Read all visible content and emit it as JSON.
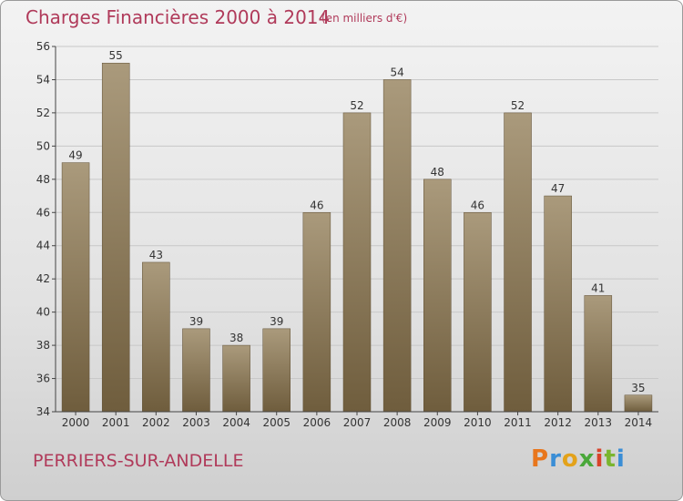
{
  "header": {
    "title": "Charges Financières 2000 à 2014",
    "subtitle": "(en milliers d'€)"
  },
  "footer": {
    "commune": "PERRIERS-SUR-ANDELLE",
    "logo_text": "Proxiti",
    "logo_colors": [
      "#e8761c",
      "#3a8ed6",
      "#e3a21a",
      "#4aa83a",
      "#d8432b",
      "#7ab52e",
      "#3a8ed6"
    ]
  },
  "colors": {
    "bar_top": "#aa9a7c",
    "bar_bottom": "#6f5d3d",
    "title": "#b03a5a",
    "grid": "#c8c8c8"
  },
  "chart_data": {
    "type": "bar",
    "title": "Charges Financières 2000 à 2014",
    "subtitle": "(en milliers d'€)",
    "categories": [
      "2000",
      "2001",
      "2002",
      "2003",
      "2004",
      "2005",
      "2006",
      "2007",
      "2008",
      "2009",
      "2010",
      "2011",
      "2012",
      "2013",
      "2014"
    ],
    "values": [
      49,
      55,
      43,
      39,
      38,
      39,
      46,
      52,
      54,
      48,
      46,
      52,
      47,
      41,
      35
    ],
    "ylim": [
      34,
      56
    ],
    "yticks": [
      34,
      36,
      38,
      40,
      42,
      44,
      46,
      48,
      50,
      52,
      54,
      56
    ],
    "grid": true,
    "xlabel": "",
    "ylabel": ""
  }
}
